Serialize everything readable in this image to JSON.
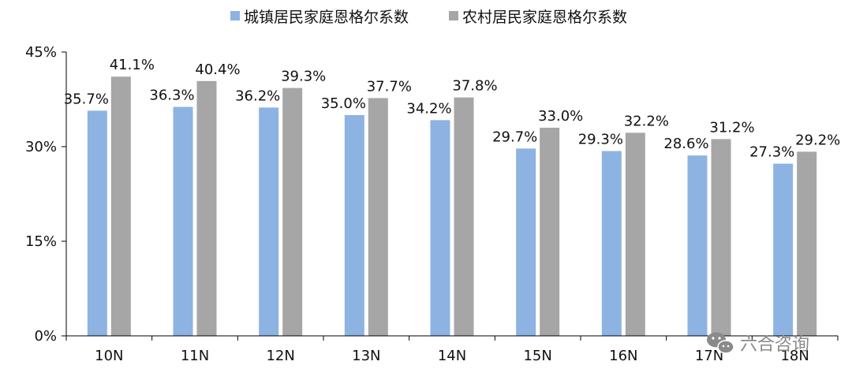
{
  "chart_data": {
    "type": "bar",
    "categories": [
      "10N",
      "11N",
      "12N",
      "13N",
      "14N",
      "15N",
      "16N",
      "17N",
      "18N"
    ],
    "series": [
      {
        "name": "城镇居民家庭恩格尔系数",
        "color": "#8db3e2",
        "values": [
          35.7,
          36.3,
          36.2,
          35.0,
          34.2,
          29.7,
          29.3,
          28.6,
          27.3
        ],
        "labels": [
          "35.7%",
          "36.3%",
          "36.2%",
          "35.0%",
          "34.2%",
          "29.7%",
          "29.3%",
          "28.6%",
          "27.3%"
        ]
      },
      {
        "name": "农村居民家庭恩格尔系数",
        "color": "#a6a6a6",
        "values": [
          41.1,
          40.4,
          39.3,
          37.7,
          37.8,
          33.0,
          32.2,
          31.2,
          29.2
        ],
        "labels": [
          "41.1%",
          "40.4%",
          "39.3%",
          "37.7%",
          "37.8%",
          "33.0%",
          "32.2%",
          "31.2%",
          "29.2%"
        ]
      }
    ],
    "ylim": [
      0,
      45
    ],
    "yticks": [
      0,
      15,
      30,
      45
    ],
    "ytick_labels": [
      "0%",
      "15%",
      "30%",
      "45%"
    ],
    "legend_position": "top",
    "grid": false
  },
  "watermark": {
    "text": "六合咨询",
    "icon": "wechat-icon"
  }
}
